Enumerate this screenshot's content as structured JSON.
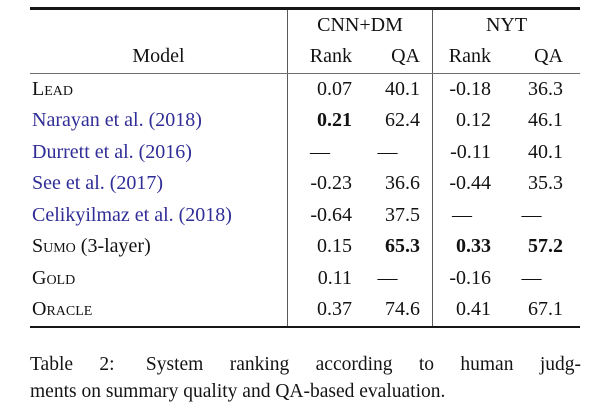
{
  "table": {
    "group_headers": {
      "cnn_dm": "CNN+DM",
      "nyt": "NYT"
    },
    "col_headers": {
      "model": "Model",
      "rank1": "Rank",
      "qa1": "QA",
      "rank2": "Rank",
      "qa2": "QA"
    },
    "rows": [
      {
        "model_sc": "Lead",
        "model_rest": "",
        "cnn_rank": "0.07",
        "cnn_qa": "40.1",
        "nyt_rank": "-0.18",
        "nyt_qa": "36.3"
      },
      {
        "model_sc": "",
        "model_rest": "Narayan et al. (2018)",
        "cnn_rank": "0.21",
        "cnn_qa": "62.4",
        "nyt_rank": "0.12",
        "nyt_qa": "46.1"
      },
      {
        "model_sc": "",
        "model_rest": "Durrett et al. (2016)",
        "cnn_rank": "—",
        "cnn_qa": "—",
        "nyt_rank": "-0.11",
        "nyt_qa": "40.1"
      },
      {
        "model_sc": "",
        "model_rest": "See et al. (2017)",
        "cnn_rank": "-0.23",
        "cnn_qa": "36.6",
        "nyt_rank": "-0.44",
        "nyt_qa": "35.3"
      },
      {
        "model_sc": "",
        "model_rest": "Celikyilmaz et al. (2018)",
        "cnn_rank": "-0.64",
        "cnn_qa": "37.5",
        "nyt_rank": "—",
        "nyt_qa": "—"
      },
      {
        "model_sc": "Sumo",
        "model_rest": " (3-layer)",
        "cnn_rank": "0.15",
        "cnn_qa": "65.3",
        "nyt_rank": "0.33",
        "nyt_qa": "57.2"
      },
      {
        "model_sc": "Gold",
        "model_rest": "",
        "cnn_rank": "0.11",
        "cnn_qa": "—",
        "nyt_rank": "-0.16",
        "nyt_qa": "—"
      },
      {
        "model_sc": "Oracle",
        "model_rest": "",
        "cnn_rank": "0.37",
        "cnn_qa": "74.6",
        "nyt_rank": "0.41",
        "nyt_qa": "67.1"
      }
    ]
  },
  "caption": {
    "label": "Table 2:",
    "line1": "System ranking according to human judg-",
    "line2": "ments on summary quality and QA-based evaluation."
  },
  "colors": {
    "citation_blue": "#302d96",
    "text": "#121212",
    "thick_rule": "#161616",
    "thin_rule": "#6e6e6e"
  }
}
